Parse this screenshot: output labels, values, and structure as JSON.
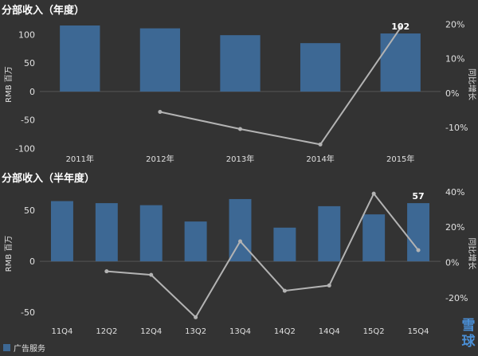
{
  "chart_data": [
    {
      "type": "bar",
      "title": "分部收入（年度）",
      "categories": [
        "2011年",
        "2012年",
        "2013年",
        "2014年",
        "2015年"
      ],
      "series": [
        {
          "type": "bar",
          "axis": "left",
          "values": [
            116,
            111,
            99,
            85,
            102
          ]
        },
        {
          "type": "line",
          "axis": "right",
          "values": [
            null,
            -5.5,
            -10.5,
            -15,
            19
          ]
        }
      ],
      "ylabel": "RMB 百万",
      "ylabel_right": "同比增长",
      "ylim": [
        -105,
        130
      ],
      "ylim_right": [
        -17,
        22
      ],
      "yticks": [
        -100,
        -50,
        0,
        50,
        100
      ],
      "yticks_right": [
        -10,
        0,
        10,
        20
      ],
      "annotation": {
        "index": 4,
        "label": "102"
      }
    },
    {
      "type": "bar",
      "title": "分部收入（半年度）",
      "categories": [
        "11Q4",
        "12Q2",
        "12Q4",
        "13Q2",
        "13Q4",
        "14Q2",
        "14Q4",
        "15Q2",
        "15Q4"
      ],
      "series": [
        {
          "type": "bar",
          "axis": "left",
          "values": [
            59,
            57,
            55,
            39,
            61,
            33,
            54,
            46,
            57
          ]
        },
        {
          "type": "line",
          "axis": "right",
          "values": [
            null,
            -5,
            -7,
            -31,
            12,
            -16,
            -13,
            39,
            7
          ]
        }
      ],
      "ylabel": "RMB 百万",
      "ylabel_right": "同比增长",
      "ylim": [
        -60,
        75
      ],
      "ylim_right": [
        -34,
        44
      ],
      "yticks": [
        -50,
        0,
        50
      ],
      "yticks_right": [
        -20,
        0,
        20,
        40
      ],
      "annotation": {
        "index": 8,
        "label": "57"
      }
    }
  ],
  "legend": {
    "label": "广告服务"
  },
  "logo": {
    "char1": "雪",
    "char2": "球"
  },
  "colors": {
    "bar": "#3d6894",
    "line": "#b3b3b3",
    "background": "#333333",
    "grid": "#4a4a4a"
  }
}
